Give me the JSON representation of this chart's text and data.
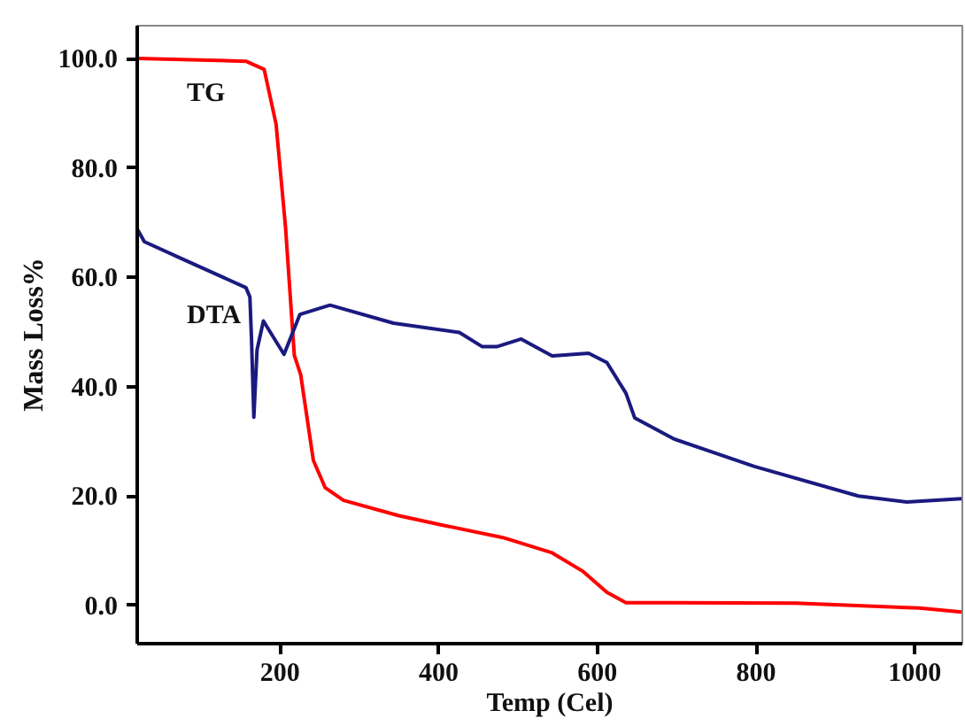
{
  "chart_data": {
    "type": "line",
    "xlabel": "Temp (Cel)",
    "ylabel": "Mass Loss%",
    "xlim": [
      20,
      1060
    ],
    "ylim": [
      -7,
      106
    ],
    "xticks": [
      200,
      400,
      600,
      800,
      1000
    ],
    "yticks": [
      {
        "value": 0,
        "label": "0.0"
      },
      {
        "value": 20,
        "label": "20.0"
      },
      {
        "value": 40,
        "label": "40.0"
      },
      {
        "value": 60,
        "label": "60.0"
      },
      {
        "value": 80,
        "label": "80.0"
      },
      {
        "value": 100,
        "label": "100.0"
      }
    ],
    "grid": false,
    "legend": false,
    "marker": "none",
    "line_style": "solid",
    "series": [
      {
        "name": "TG",
        "color": "#ff0000",
        "x": [
          20,
          157,
          180,
          195,
          207,
          218,
          226,
          242,
          257,
          280,
          350,
          404,
          481,
          543,
          581,
          612,
          636,
          850,
          1006,
          1059
        ],
        "values": [
          100,
          99.5,
          98,
          88,
          69,
          45.7,
          42.2,
          26.5,
          21.5,
          19.2,
          16.4,
          14.7,
          12.4,
          9.6,
          6.3,
          2.4,
          0.5,
          0.4,
          -0.5,
          -1.2
        ]
      },
      {
        "name": "DTA",
        "color": "#1a1a80",
        "x": [
          20,
          29,
          79,
          157,
          162,
          164,
          167,
          171,
          179,
          205,
          225,
          263,
          343,
          426,
          455,
          473,
          504,
          543,
          589,
          612,
          636,
          647,
          697,
          798,
          929,
          990,
          1059
        ],
        "values": [
          68.8,
          66.5,
          63.2,
          58.1,
          56.4,
          48.9,
          34.4,
          46.7,
          52.0,
          45.9,
          53.2,
          54.9,
          51.6,
          49.9,
          47.3,
          47.3,
          48.7,
          45.6,
          46.1,
          44.4,
          38.8,
          34.3,
          30.4,
          25.4,
          20.0,
          18.9,
          19.5
        ]
      }
    ]
  }
}
